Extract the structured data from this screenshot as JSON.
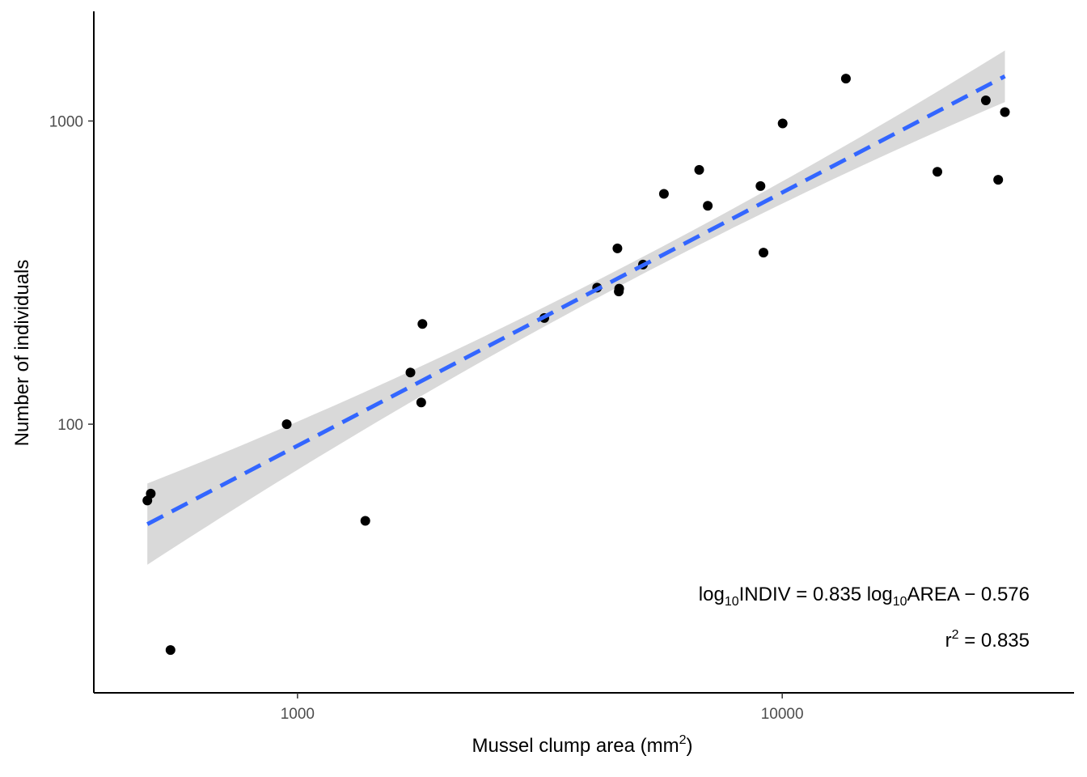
{
  "chart_data": {
    "type": "scatter",
    "title": "",
    "xlabel": "Mussel clump area (mm",
    "xlabel_sup": "2",
    "xlabel_close": ")",
    "ylabel": "Number of individuals",
    "x_scale": "log10",
    "y_scale": "log10",
    "xlim": [
      380,
      40000
    ],
    "ylim": [
      13,
      2300
    ],
    "x_ticks": [
      1000,
      10000
    ],
    "x_tick_labels": [
      "1000",
      "10000"
    ],
    "y_ticks": [
      100,
      1000
    ],
    "y_tick_labels": [
      "100",
      "1000"
    ],
    "grid": false,
    "points": [
      {
        "x": 490,
        "y": 56
      },
      {
        "x": 498,
        "y": 59
      },
      {
        "x": 547,
        "y": 18
      },
      {
        "x": 950,
        "y": 100
      },
      {
        "x": 1380,
        "y": 48
      },
      {
        "x": 1710,
        "y": 148
      },
      {
        "x": 1800,
        "y": 118
      },
      {
        "x": 1810,
        "y": 214
      },
      {
        "x": 3230,
        "y": 224
      },
      {
        "x": 4150,
        "y": 282
      },
      {
        "x": 4600,
        "y": 274
      },
      {
        "x": 4610,
        "y": 280
      },
      {
        "x": 4570,
        "y": 380
      },
      {
        "x": 5160,
        "y": 336
      },
      {
        "x": 5700,
        "y": 575
      },
      {
        "x": 7020,
        "y": 525
      },
      {
        "x": 6740,
        "y": 690
      },
      {
        "x": 9020,
        "y": 610
      },
      {
        "x": 9150,
        "y": 368
      },
      {
        "x": 10020,
        "y": 982
      },
      {
        "x": 13530,
        "y": 1380
      },
      {
        "x": 20900,
        "y": 680
      },
      {
        "x": 26300,
        "y": 1170
      },
      {
        "x": 27900,
        "y": 640
      },
      {
        "x": 28800,
        "y": 1070
      }
    ],
    "fit": {
      "slope": 0.835,
      "intercept": -0.576,
      "x_range": [
        490,
        28800
      ],
      "line_color": "#3366FF",
      "band_color": "#d9d9d9",
      "ci_halfwidth_log": [
        0.134,
        0.03,
        0.085
      ]
    },
    "point_color": "#000000",
    "annotations": {
      "equation": {
        "lhs_log": "log",
        "lhs_sub": "10",
        "lhs_var": "INDIV",
        "equals": " = 0.835 ",
        "rhs_log": "log",
        "rhs_sub": "10",
        "rhs_var": "AREA",
        "rhs_tail": " − 0.576"
      },
      "r2": {
        "r": "r",
        "sup": "2",
        "rest": " = 0.835"
      }
    }
  }
}
